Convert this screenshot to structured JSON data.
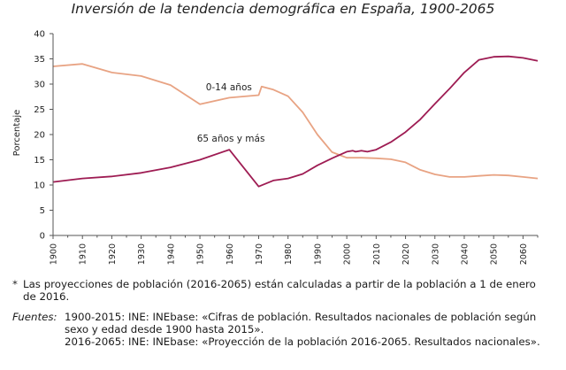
{
  "chart_data": {
    "type": "line",
    "title": "Inversión de la tendencia demográfica en España, 1900-2065",
    "xlabel": "",
    "ylabel": "Porcentaje",
    "xlim": [
      1900,
      2065
    ],
    "ylim": [
      0,
      40
    ],
    "x_ticks": [
      1900,
      1910,
      1920,
      1930,
      1940,
      1950,
      1960,
      1970,
      1980,
      1990,
      2000,
      2010,
      2020,
      2030,
      2040,
      2050,
      2060
    ],
    "y_ticks": [
      0,
      5,
      10,
      15,
      20,
      25,
      30,
      35,
      40
    ],
    "grid": false,
    "legend": "none",
    "series": [
      {
        "name": "0-14 años",
        "color": "#E8A383",
        "points": [
          [
            1900,
            33.5
          ],
          [
            1910,
            34.0
          ],
          [
            1920,
            32.3
          ],
          [
            1930,
            31.6
          ],
          [
            1940,
            29.8
          ],
          [
            1950,
            26.0
          ],
          [
            1960,
            27.3
          ],
          [
            1970,
            27.8
          ],
          [
            1971,
            29.5
          ],
          [
            1975,
            28.9
          ],
          [
            1980,
            27.6
          ],
          [
            1985,
            24.4
          ],
          [
            1990,
            20.0
          ],
          [
            1995,
            16.5
          ],
          [
            2000,
            15.4
          ],
          [
            2005,
            15.4
          ],
          [
            2010,
            15.3
          ],
          [
            2015,
            15.1
          ],
          [
            2020,
            14.5
          ],
          [
            2025,
            13.0
          ],
          [
            2030,
            12.1
          ],
          [
            2035,
            11.6
          ],
          [
            2040,
            11.6
          ],
          [
            2045,
            11.8
          ],
          [
            2050,
            12.0
          ],
          [
            2055,
            11.9
          ],
          [
            2060,
            11.6
          ],
          [
            2065,
            11.3
          ]
        ]
      },
      {
        "name": "65 años y más",
        "color": "#9E1C53",
        "points": [
          [
            1900,
            10.6
          ],
          [
            1910,
            11.3
          ],
          [
            1920,
            11.7
          ],
          [
            1930,
            12.4
          ],
          [
            1940,
            13.5
          ],
          [
            1950,
            15.0
          ],
          [
            1960,
            17.0
          ],
          [
            1970,
            9.7
          ],
          [
            1975,
            10.9
          ],
          [
            1980,
            11.3
          ],
          [
            1985,
            12.2
          ],
          [
            1990,
            13.9
          ],
          [
            1995,
            15.3
          ],
          [
            2000,
            16.6
          ],
          [
            2002,
            16.8
          ],
          [
            2003,
            16.6
          ],
          [
            2005,
            16.8
          ],
          [
            2007,
            16.6
          ],
          [
            2010,
            17.0
          ],
          [
            2015,
            18.5
          ],
          [
            2020,
            20.5
          ],
          [
            2025,
            23.0
          ],
          [
            2030,
            26.1
          ],
          [
            2035,
            29.1
          ],
          [
            2040,
            32.3
          ],
          [
            2045,
            34.8
          ],
          [
            2050,
            35.4
          ],
          [
            2055,
            35.5
          ],
          [
            2060,
            35.2
          ],
          [
            2065,
            34.6
          ]
        ]
      }
    ]
  },
  "footnotes": {
    "asterisk": "*",
    "note": "Las proyecciones de población (2016-2065) están calculadas a partir de la población a 1 de enero de 2016.",
    "sources_label": "Fuentes:",
    "sources": [
      "1900-2015: INE: INEbase: «Cifras de población. Resultados nacionales de población según sexo y edad desde 1900 hasta 2015».",
      "2016-2065: INE: INEbase: «Proyección de la población 2016-2065. Resultados nacionales»."
    ]
  }
}
